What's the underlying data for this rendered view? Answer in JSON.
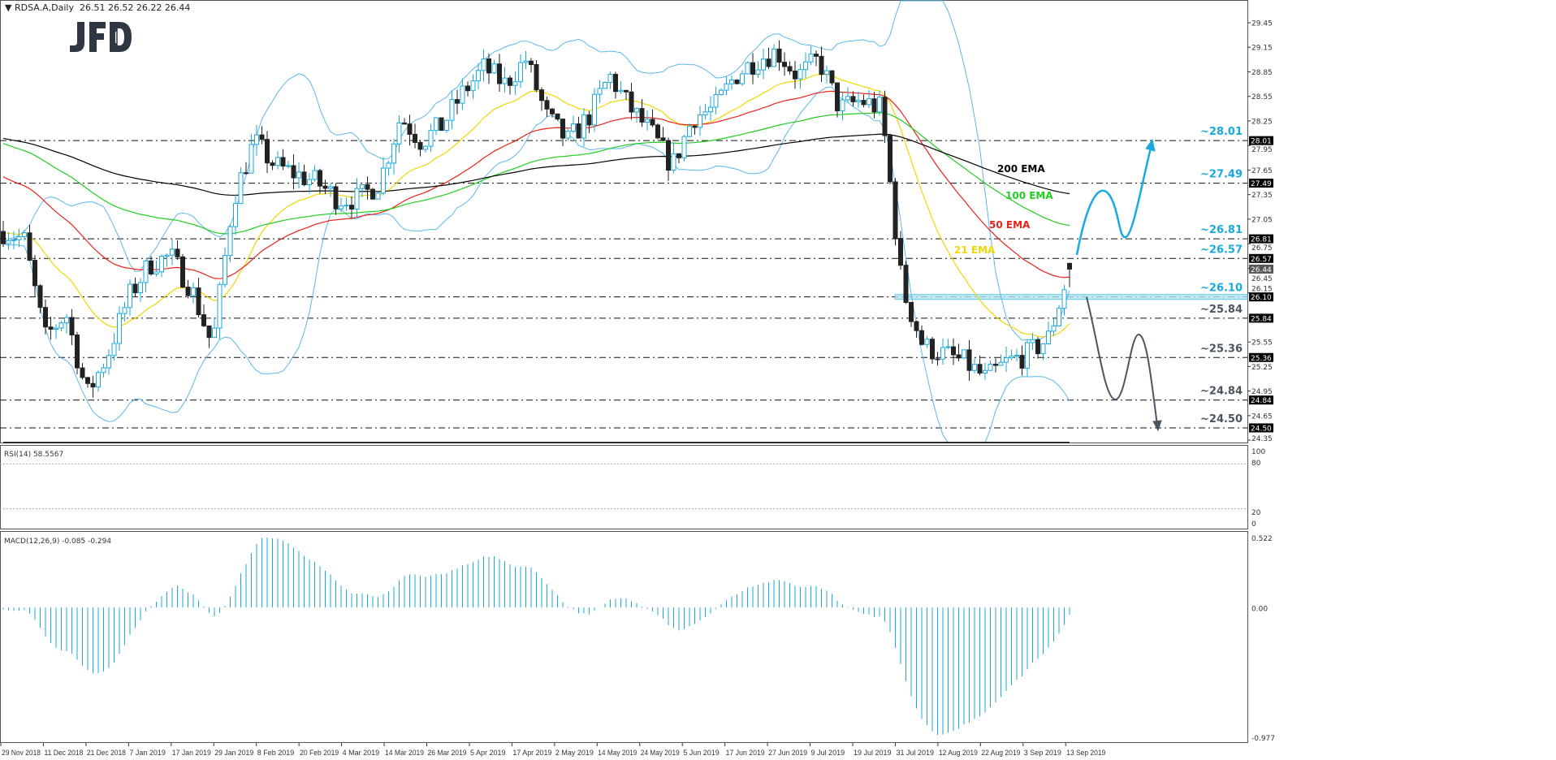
{
  "header": {
    "symbol": "RDSA.A,Daily",
    "ohlc": "26.51 26.52 26.22 26.44"
  },
  "logo": "JFD",
  "chart_data": {
    "type": "candlestick",
    "title": "RDSA.A,Daily",
    "x_tick_labels": [
      "29 Nov 2018",
      "11 Dec 2018",
      "21 Dec 2018",
      "7 Jan 2019",
      "17 Jan 2019",
      "29 Jan 2019",
      "8 Feb 2019",
      "20 Feb 2019",
      "4 Mar 2019",
      "14 Mar 2019",
      "26 Mar 2019",
      "5 Apr 2019",
      "17 Apr 2019",
      "2 May 2019",
      "14 May 2019",
      "24 May 2019",
      "5 Jun 2019",
      "17 Jun 2019",
      "27 Jun 2019",
      "9 Jul 2019",
      "19 Jul 2019",
      "31 Jul 2019",
      "12 Aug 2019",
      "22 Aug 2019",
      "3 Sep 2019",
      "13 Sep 2019"
    ],
    "y_tick_labels": [
      "29.45",
      "29.15",
      "28.85",
      "28.55",
      "28.25",
      "27.95",
      "27.65",
      "27.35",
      "27.05",
      "26.75",
      "26.45",
      "26.15",
      "25.55",
      "25.25",
      "24.95",
      "24.65",
      "24.35"
    ],
    "ylim": [
      24.32,
      29.73
    ],
    "close_approx": [
      26.9,
      26.8,
      25.6,
      25.9,
      24.9,
      25.4,
      26.1,
      26.5,
      26.6,
      26.2,
      25.5,
      27.3,
      28.0,
      27.7,
      27.6,
      27.5,
      27.3,
      27.3,
      27.5,
      28.3,
      28.0,
      28.2,
      28.6,
      28.9,
      28.7,
      29.0,
      28.3,
      28.0,
      28.3,
      28.8,
      28.4,
      28.1,
      27.7,
      28.3,
      28.4,
      28.8,
      29.0,
      29.1,
      28.8,
      29.0,
      28.4,
      28.5,
      28.4,
      26.2,
      25.5,
      25.4,
      25.3,
      25.1,
      25.3,
      25.4,
      25.6,
      26.44
    ],
    "last_bar": {
      "open": 26.51,
      "high": 26.52,
      "low": 26.22,
      "close": 26.44
    },
    "current_price": "26.44",
    "indicators": [
      {
        "name": "21 EMA",
        "color": "#f2d600"
      },
      {
        "name": "50 EMA",
        "color": "#e8231c"
      },
      {
        "name": "100 EMA",
        "color": "#22cc22"
      },
      {
        "name": "200 EMA",
        "color": "#000000"
      }
    ],
    "bollinger_color": "#5bb8e8",
    "levels": [
      {
        "value": 28.01,
        "label": "~28.01",
        "box": "28.01",
        "color": "#1aa9dc"
      },
      {
        "value": 27.49,
        "label": "~27.49",
        "box": "27.49",
        "color": "#1aa9dc"
      },
      {
        "value": 26.81,
        "label": "~26.81",
        "box": "26.81",
        "color": "#1aa9dc"
      },
      {
        "value": 26.57,
        "label": "~26.57",
        "box": "26.57",
        "color": "#1aa9dc"
      },
      {
        "value": 26.1,
        "label": "~26.10",
        "box": "26.10",
        "color": "#1aa9dc"
      },
      {
        "value": 25.84,
        "label": "~25.84",
        "box": "25.84",
        "color": "#4a5560"
      },
      {
        "value": 25.36,
        "label": "~25.36",
        "box": "25.36",
        "color": "#4a5560"
      },
      {
        "value": 24.84,
        "label": "~24.84",
        "box": "24.84",
        "color": "#4a5560"
      },
      {
        "value": 24.5,
        "label": "~24.50",
        "box": "24.50",
        "color": "#4a5560"
      }
    ],
    "scenario_colors": {
      "bullish": "#1aa9dc",
      "bearish": "#4a5560"
    },
    "rsi": {
      "label": "RSI(14) 58.5567",
      "ticks": [
        "100",
        "80",
        "20",
        "0"
      ],
      "levels": [
        80,
        20
      ],
      "color": "#1aa9dc"
    },
    "macd": {
      "label": "MACD(12,26,9) -0.085 -0.294",
      "ticks": [
        "0.522",
        "0.00",
        "-0.977"
      ],
      "histogram_color": "#1aa9dc",
      "signal_color": "#000000"
    }
  }
}
